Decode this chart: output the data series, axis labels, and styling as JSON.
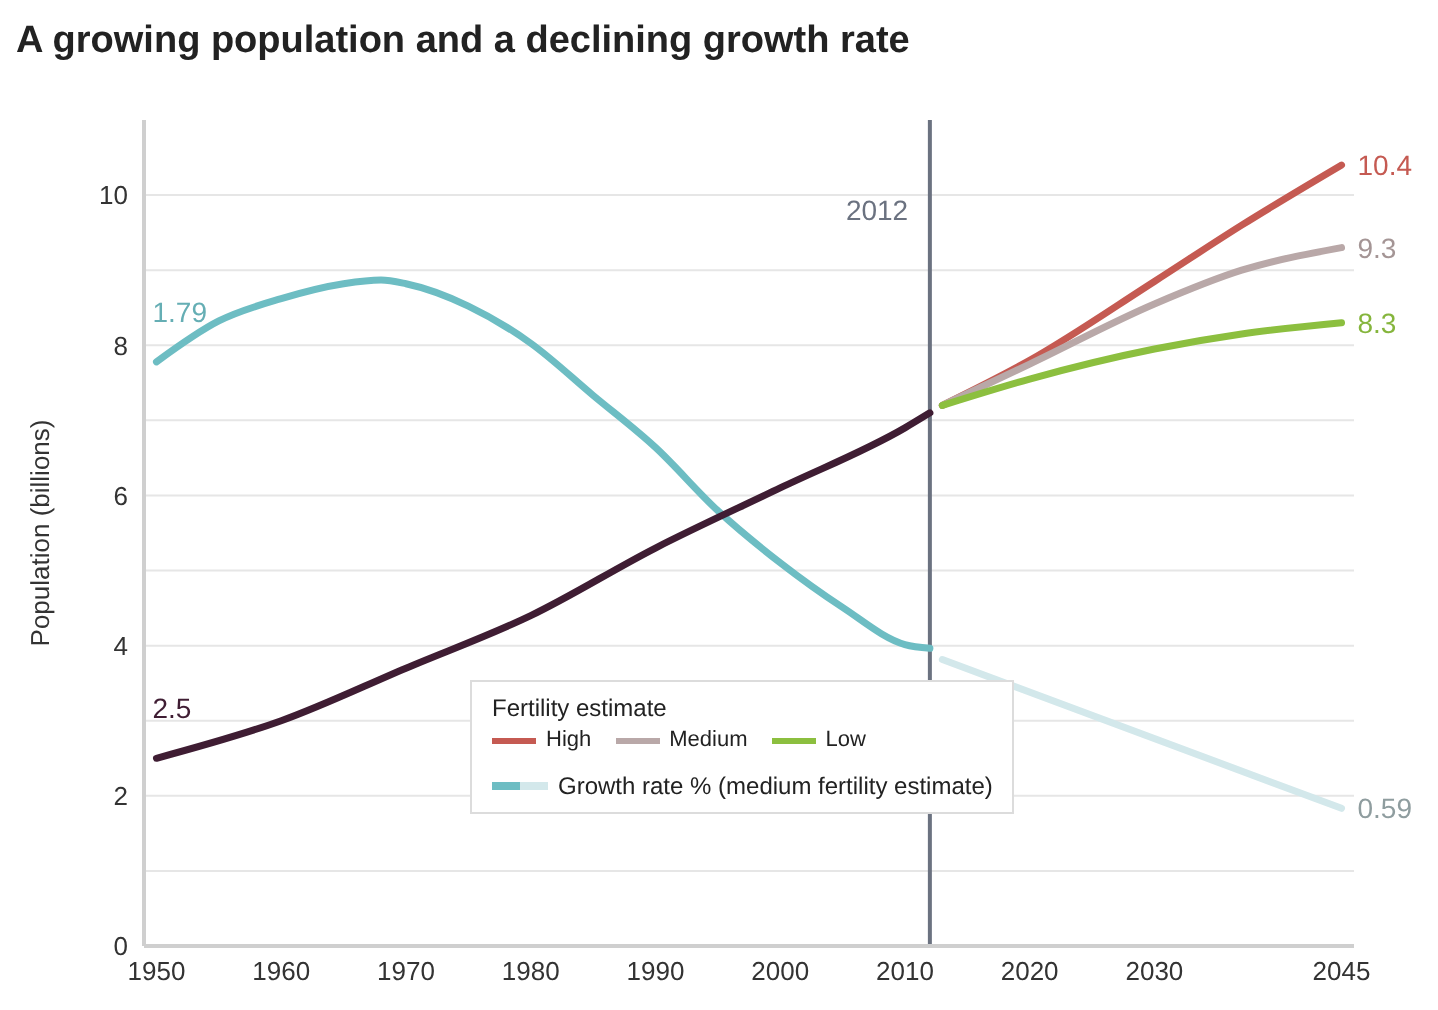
{
  "chart_data": {
    "type": "line",
    "title": "A growing population and a declining growth rate",
    "ylabel": "Population (billions)",
    "legend_title": "Fertility estimate",
    "legend": "bottom",
    "grid": "y",
    "xlim": [
      1949,
      2046
    ],
    "xticks": [
      1950,
      1960,
      1970,
      1980,
      1990,
      2000,
      2010,
      2020,
      2030,
      2045
    ],
    "ylim": [
      0,
      11
    ],
    "yticks": [
      0,
      {
        "value": 1,
        "label": null
      },
      2,
      {
        "value": 3,
        "label": null
      },
      4,
      {
        "value": 5,
        "label": null
      },
      6,
      {
        "value": 7,
        "label": null
      },
      8,
      {
        "value": 9,
        "label": null
      },
      10
    ],
    "y2lim": [
      0.22,
      2.44
    ],
    "ref_lines": [
      {
        "axis": "x",
        "value": 2012,
        "label": "2012",
        "color": "#6b7280"
      }
    ],
    "series": [
      {
        "color": "#6dbdc3",
        "axis": "y2",
        "name": "Growth rate % (medium fertility estimate)",
        "x": [
          1950,
          1955,
          1960,
          1965,
          1968,
          1970,
          1975,
          1980,
          1985,
          1990,
          1995,
          2000,
          2005,
          2010,
          2012
        ],
        "values": [
          1.79,
          1.9,
          1.96,
          2.0,
          2.01,
          2.0,
          1.94,
          1.84,
          1.7,
          1.56,
          1.39,
          1.25,
          1.13,
          1.03,
          1.02
        ],
        "value_labels": [
          "1.79",
          null,
          null,
          null,
          null,
          null,
          null,
          null,
          null,
          null,
          null,
          null,
          null,
          null,
          null
        ]
      },
      {
        "color": "#d3e8eb",
        "axis": "y2",
        "x": [
          2013,
          2045
        ],
        "values": [
          0.99,
          0.59
        ],
        "value_labels": [
          null,
          "0.59"
        ]
      },
      {
        "color": "#3f1d33",
        "x": [
          1950,
          1960,
          1970,
          1980,
          1990,
          2000,
          2010,
          2012
        ],
        "values": [
          2.5,
          3.0,
          3.7,
          4.4,
          5.3,
          6.1,
          6.9,
          7.1
        ],
        "value_labels": [
          "2.5",
          null,
          null,
          null,
          null,
          null,
          null,
          null
        ]
      },
      {
        "name": "High",
        "color": "#c55a52",
        "x": [
          2013,
          2020,
          2030,
          2037,
          2045
        ],
        "values": [
          7.2,
          7.8,
          8.85,
          9.6,
          10.4
        ],
        "value_labels": [
          null,
          null,
          null,
          null,
          "10.4"
        ]
      },
      {
        "name": "Medium",
        "color": "#b9a8a8",
        "x": [
          2013,
          2020,
          2030,
          2037,
          2045
        ],
        "values": [
          7.2,
          7.75,
          8.55,
          9.0,
          9.3
        ],
        "value_labels": [
          null,
          null,
          null,
          null,
          "9.3"
        ]
      },
      {
        "name": "Low",
        "color": "#8cbf3f",
        "x": [
          2013,
          2020,
          2030,
          2037,
          2045
        ],
        "values": [
          7.2,
          7.55,
          7.95,
          8.15,
          8.3
        ],
        "value_labels": [
          null,
          null,
          null,
          null,
          "8.3"
        ]
      }
    ]
  }
}
